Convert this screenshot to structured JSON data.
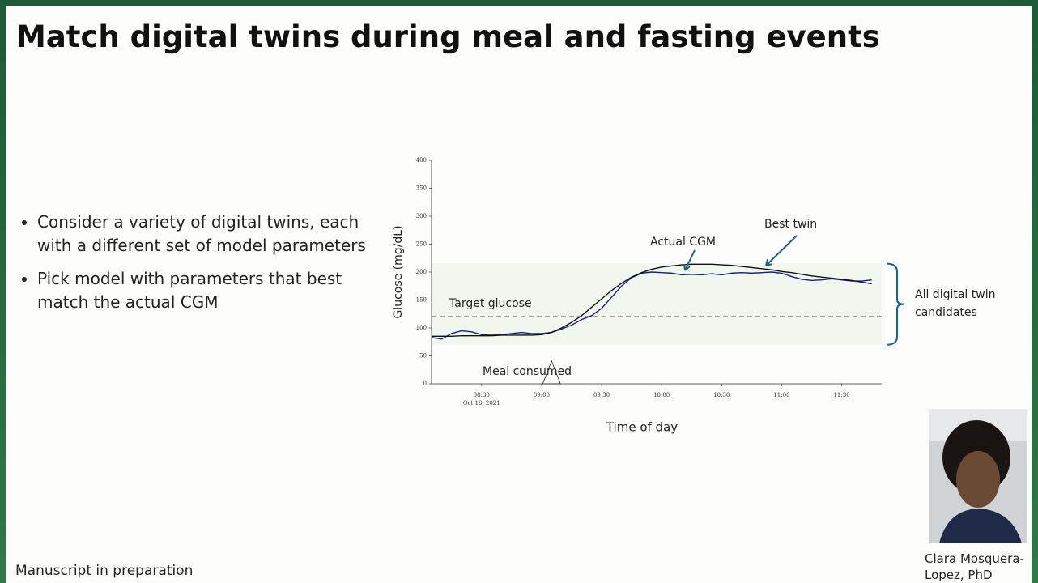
{
  "title": "Match digital twins during meal and fasting events",
  "bullets": [
    "Consider a variety of digital twins, each with a different set of model parameters",
    "Pick model with parameters that best match the actual CGM"
  ],
  "footer": "Manuscript in preparation",
  "presenter": {
    "name": "Clara Mosquera-Lopez, PhD"
  },
  "chart_data": {
    "type": "line",
    "xlabel": "Time of day",
    "ylabel": "Glucose (mg/dL)",
    "x_date_label": "Oct 18, 2021",
    "x": [
      "08:05",
      "08:10",
      "08:15",
      "08:20",
      "08:25",
      "08:30",
      "08:35",
      "08:40",
      "08:45",
      "08:50",
      "08:55",
      "09:00",
      "09:05",
      "09:10",
      "09:15",
      "09:20",
      "09:25",
      "09:30",
      "09:35",
      "09:40",
      "09:45",
      "09:50",
      "09:55",
      "10:00",
      "10:05",
      "10:10",
      "10:15",
      "10:20",
      "10:25",
      "10:30",
      "10:35",
      "10:40",
      "10:45",
      "10:50",
      "10:55",
      "11:00",
      "11:05",
      "11:10",
      "11:15",
      "11:20",
      "11:25",
      "11:30",
      "11:35",
      "11:40",
      "11:45"
    ],
    "series": [
      {
        "color": "#1c1c86",
        "values": [
          83,
          80,
          90,
          95,
          93,
          88,
          87,
          88,
          90,
          92,
          90,
          90,
          92,
          98,
          105,
          115,
          122,
          135,
          155,
          175,
          190,
          198,
          200,
          199,
          198,
          195,
          196,
          195,
          197,
          195,
          198,
          199,
          198,
          199,
          200,
          198,
          192,
          187,
          185,
          186,
          188,
          186,
          184,
          184,
          186
        ]
      },
      {
        "color": "#111111",
        "values": [
          85,
          85,
          85,
          86,
          86,
          86,
          86,
          87,
          87,
          87,
          87,
          88,
          92,
          100,
          110,
          122,
          137,
          152,
          167,
          180,
          191,
          199,
          205,
          209,
          211,
          213,
          214,
          214,
          214,
          213,
          212,
          210,
          208,
          206,
          204,
          201,
          199,
          196,
          193,
          191,
          189,
          187,
          185,
          182,
          179
        ]
      }
    ],
    "xlim": [
      "08:05",
      "11:50"
    ],
    "xticks": [
      "08:30",
      "09:00",
      "09:30",
      "10:00",
      "10:30",
      "11:00",
      "11:30"
    ],
    "ylim": [
      0,
      400
    ],
    "yticks": [
      0,
      50,
      100,
      150,
      200,
      250,
      300,
      350,
      400
    ],
    "candidate_range": [
      70,
      215
    ],
    "target": {
      "label": "Target glucose",
      "value": 120
    },
    "meal": {
      "label": "Meal consumed",
      "x": "09:05"
    },
    "annotations": [
      "Actual CGM",
      "Best twin",
      "All digital twin candidates"
    ]
  }
}
